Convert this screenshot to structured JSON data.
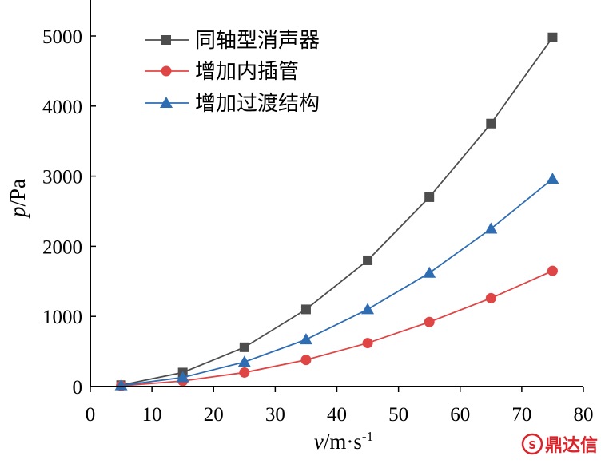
{
  "chart_data": {
    "type": "line",
    "title": "",
    "xlabel_var": "v",
    "xlabel_unit": "/m·s",
    "xlabel_sup": "-1",
    "ylabel_var": "p",
    "ylabel_unit": "/Pa",
    "xlim": [
      0,
      80
    ],
    "ylim": [
      0,
      5000
    ],
    "x_ticks": [
      0,
      10,
      20,
      30,
      40,
      50,
      60,
      70,
      80
    ],
    "y_ticks": [
      0,
      1000,
      2000,
      3000,
      4000,
      5000
    ],
    "grid": false,
    "legend_position": "top-left",
    "x": [
      5,
      15,
      25,
      35,
      45,
      55,
      65,
      75
    ],
    "series": [
      {
        "name": "同轴型消声器",
        "color": "#4d4d4d",
        "marker": "square",
        "values": [
          20,
          200,
          560,
          1100,
          1800,
          2700,
          3750,
          4980
        ]
      },
      {
        "name": "增加内插管",
        "color": "#e04545",
        "marker": "circle",
        "values": [
          10,
          80,
          200,
          380,
          620,
          920,
          1260,
          1650
        ]
      },
      {
        "name": "增加过渡结构",
        "color": "#2f6db3",
        "marker": "triangle",
        "values": [
          15,
          130,
          350,
          670,
          1100,
          1620,
          2250,
          2960
        ]
      }
    ]
  },
  "watermark": {
    "text": "鼎达信",
    "color": "#d9242b"
  }
}
